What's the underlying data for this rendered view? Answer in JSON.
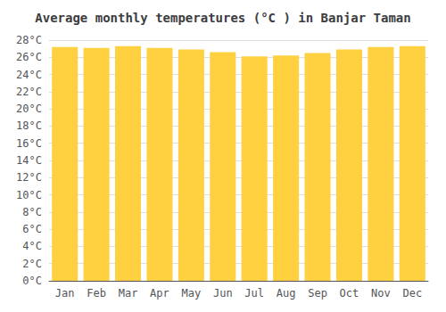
{
  "chart_data": {
    "type": "bar",
    "title": "Average monthly temperatures (°C ) in Banjar Taman",
    "categories": [
      "Jan",
      "Feb",
      "Mar",
      "Apr",
      "May",
      "Jun",
      "Jul",
      "Aug",
      "Sep",
      "Oct",
      "Nov",
      "Dec"
    ],
    "values": [
      27.2,
      27.1,
      27.3,
      27.1,
      26.9,
      26.6,
      26.1,
      26.2,
      26.5,
      26.9,
      27.2,
      27.3
    ],
    "color": "#FFD040",
    "ylim": [
      0,
      28
    ],
    "yticks": [
      {
        "value": 0,
        "label": "0°C"
      },
      {
        "value": 2,
        "label": "2°C"
      },
      {
        "value": 4,
        "label": "4°C"
      },
      {
        "value": 6,
        "label": "6°C"
      },
      {
        "value": 8,
        "label": "8°C"
      },
      {
        "value": 10,
        "label": "10°C"
      },
      {
        "value": 12,
        "label": "12°C"
      },
      {
        "value": 14,
        "label": "14°C"
      },
      {
        "value": 16,
        "label": "16°C"
      },
      {
        "value": 18,
        "label": "18°C"
      },
      {
        "value": 20,
        "label": "20°C"
      },
      {
        "value": 22,
        "label": "22°C"
      },
      {
        "value": 24,
        "label": "24°C"
      },
      {
        "value": 26,
        "label": "26°C"
      },
      {
        "value": 28,
        "label": "28°C"
      }
    ],
    "grid": true
  }
}
